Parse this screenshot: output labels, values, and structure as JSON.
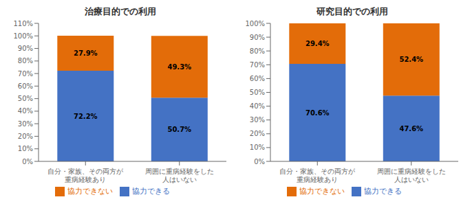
{
  "chart_data": [
    {
      "type": "bar",
      "title": "治療目的での利用",
      "categories": [
        "自分・家族、その両方が\n重病経験あり",
        "周囲に重病経験をした\n人はいない"
      ],
      "series": [
        {
          "name": "協力できる",
          "color": "#4472C4",
          "values": [
            72.2,
            50.7
          ],
          "value_labels": [
            "72.2%",
            "50.7%"
          ]
        },
        {
          "name": "協力できない",
          "color": "#E36C09",
          "values": [
            27.9,
            49.3
          ],
          "value_labels": [
            "27.9%",
            "49.3%"
          ]
        }
      ],
      "stacked": true,
      "data_labels": true,
      "ylim": [
        0,
        110
      ],
      "yticks": [
        {
          "value": 0,
          "label": "0%"
        },
        {
          "value": 10,
          "label": "10%"
        },
        {
          "value": 20,
          "label": "20%"
        },
        {
          "value": 30,
          "label": "30%"
        },
        {
          "value": 40,
          "label": "40%"
        },
        {
          "value": 50,
          "label": "50%"
        },
        {
          "value": 60,
          "label": "60%"
        },
        {
          "value": 70,
          "label": "70%"
        },
        {
          "value": 80,
          "label": "80%"
        },
        {
          "value": 90,
          "label": "90%"
        },
        {
          "value": 100,
          "label": "100%"
        },
        {
          "value": 110,
          "label": "110%"
        }
      ],
      "grid": false,
      "legend": "bottom"
    },
    {
      "type": "bar",
      "title": "研究目的での利用",
      "categories": [
        "自分・家族、その両方が\n重病経験あり",
        "周囲に重病経験をした\n人はいない"
      ],
      "series": [
        {
          "name": "協力できる",
          "color": "#4472C4",
          "values": [
            70.6,
            47.6
          ],
          "value_labels": [
            "70.6%",
            "47.6%"
          ]
        },
        {
          "name": "協力できない",
          "color": "#E36C09",
          "values": [
            29.4,
            52.4
          ],
          "value_labels": [
            "29.4%",
            "52.4%"
          ]
        }
      ],
      "stacked": true,
      "data_labels": true,
      "ylim": [
        0,
        100
      ],
      "yticks": [
        {
          "value": 0,
          "label": "0%"
        },
        {
          "value": 10,
          "label": "10%"
        },
        {
          "value": 20,
          "label": "20%"
        },
        {
          "value": 30,
          "label": "30%"
        },
        {
          "value": 40,
          "label": "40%"
        },
        {
          "value": 50,
          "label": "50%"
        },
        {
          "value": 60,
          "label": "60%"
        },
        {
          "value": 70,
          "label": "70%"
        },
        {
          "value": 80,
          "label": "80%"
        },
        {
          "value": 90,
          "label": "90%"
        },
        {
          "value": 100,
          "label": "100%"
        }
      ],
      "grid": false,
      "legend": "bottom"
    }
  ]
}
